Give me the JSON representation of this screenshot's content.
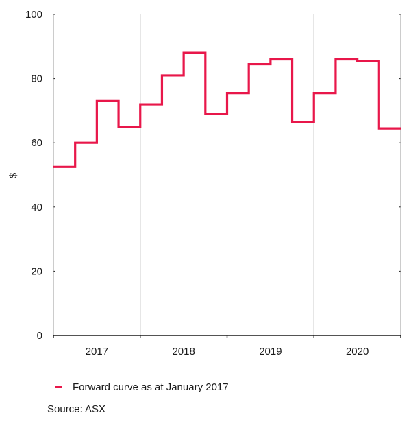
{
  "chart_data": {
    "type": "line",
    "subtype": "step",
    "title": "",
    "xlabel": "",
    "ylabel": "$",
    "ylim": [
      0,
      100
    ],
    "yticks": [
      0,
      20,
      40,
      60,
      80,
      100
    ],
    "categories": [
      "2017",
      "2018",
      "2019",
      "2020"
    ],
    "x": [
      "2017 Q1",
      "2017 Q2",
      "2017 Q3",
      "2017 Q4",
      "2018 Q1",
      "2018 Q2",
      "2018 Q3",
      "2018 Q4",
      "2019 Q1",
      "2019 Q2",
      "2019 Q3",
      "2019 Q4",
      "2020 Q1",
      "2020 Q2",
      "2020 Q3",
      "2020 Q4"
    ],
    "series": [
      {
        "name": "Forward curve as at January 2017",
        "color": "#E8174A",
        "values": [
          52.5,
          60,
          73,
          65,
          72,
          81,
          88,
          69,
          75.5,
          84.5,
          86,
          66.5,
          75.5,
          86,
          85.5,
          64.5
        ]
      }
    ],
    "grid": {
      "vertical_year_separators": true,
      "horizontal": false
    },
    "legend_position": "bottom-left",
    "source": "Source: ASX"
  },
  "legend": {
    "label": "Forward curve as at January 2017",
    "color": "#E8174A"
  },
  "source_label": "Source: ASX",
  "colors": {
    "line": "#E8174A",
    "axis": "#1a1a1a",
    "grid": "#9a9a9a"
  }
}
